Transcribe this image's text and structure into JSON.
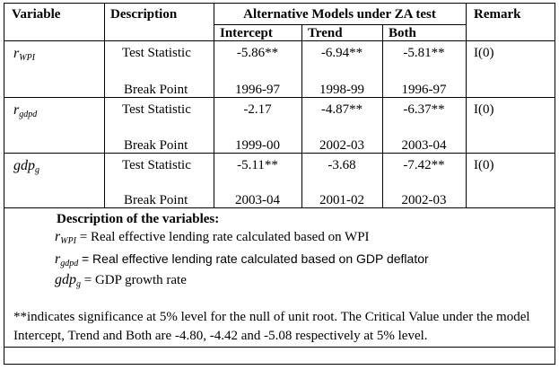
{
  "table": {
    "headers": {
      "variable": "Variable",
      "description": "Description",
      "group": "Alternative Models under ZA test",
      "remark": "Remark",
      "sub": [
        "Intercept",
        "Trend",
        "Both"
      ]
    },
    "rows": [
      {
        "var_base": "r",
        "var_sub": "WPI",
        "stat_label": "Test Statistic",
        "bp_label": "Break Point",
        "stat": [
          "-5.86**",
          "-6.94**",
          "-5.81**"
        ],
        "bp": [
          "1996-97",
          "1998-99",
          "1996-97"
        ],
        "remark": "I(0)"
      },
      {
        "var_base": "r",
        "var_sub": "gdpd",
        "stat_label": "Test Statistic",
        "bp_label": "Break Point",
        "stat": [
          "-2.17",
          "-4.87**",
          "-6.37**"
        ],
        "bp": [
          "1999-00",
          "2002-03",
          "2003-04"
        ],
        "remark": "I(0)"
      },
      {
        "var_base": "gdp",
        "var_sub": "g",
        "stat_label": "Test Statistic",
        "bp_label": "Break Point",
        "stat": [
          "-5.11**",
          "-3.68",
          "-7.42**"
        ],
        "bp": [
          "2003-04",
          "2001-02",
          "2002-03"
        ],
        "remark": "I(0)"
      }
    ]
  },
  "description": {
    "title": "Description of the variables:",
    "items": [
      {
        "var_base": "r",
        "var_sub": "WPI",
        "text": "= Real effective lending rate calculated based on WPI"
      },
      {
        "var_base": "r",
        "var_sub": "gdpd",
        "text": "= Real effective lending rate calculated based on GDP deflator"
      },
      {
        "var_base": "gdp",
        "var_sub": "g",
        "text": "= GDP growth rate"
      }
    ]
  },
  "note": "**indicates significance at 5% level for the null of unit root. The Critical Value under the model Intercept, Trend and Both are -4.80, -4.42 and -5.08 respectively at 5% level."
}
